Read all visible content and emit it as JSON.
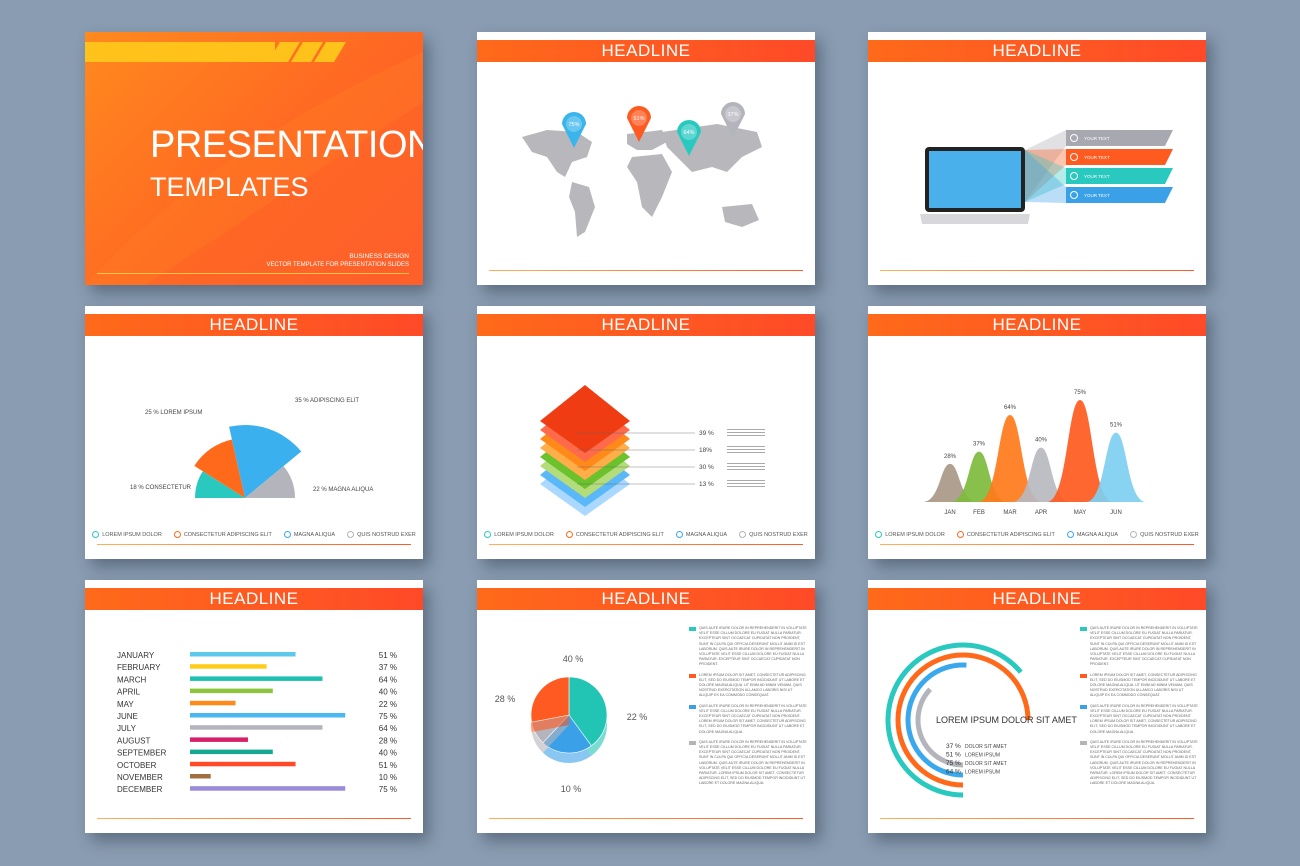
{
  "colors": {
    "background": "#8a9cb1",
    "accent": "#ff5a28",
    "yellow": "#ffc21a",
    "teal": "#2ac9c0",
    "orange": "#ff6a1a",
    "blue": "#3aa8ec",
    "gray": "#b4b4bc"
  },
  "cover": {
    "title": "PRESENTATION",
    "subtitle": "TEMPLATES",
    "tag1": "BUSINESS DESIGN",
    "tag2": "VECTOR TEMPLATE FOR PRESENTATION SLIDES"
  },
  "headline": "HEADLINE",
  "map": {
    "pins": [
      {
        "value": "75%",
        "color": "#3ab4ec"
      },
      {
        "value": "51%",
        "color": "#ff5a1f"
      },
      {
        "value": "64%",
        "color": "#2ac9c0"
      },
      {
        "value": "37%",
        "color": "#b4b4bc"
      }
    ]
  },
  "laptop": {
    "items": [
      {
        "icon": "home-icon",
        "text": "YOUR TEXT",
        "color": "#a8a8b0"
      },
      {
        "icon": "lightbulb-icon",
        "text": "YOUR TEXT",
        "color": "#ff5a1f"
      },
      {
        "icon": "globe-icon",
        "text": "YOUR TEXT",
        "color": "#2ac9c0"
      },
      {
        "icon": "gears-icon",
        "text": "YOUR TEXT",
        "color": "#3aa0e8"
      }
    ]
  },
  "legend": [
    "LOREM IPSUM DOLOR",
    "CONSECTETUR ADIPISCING ELIT",
    "MAGNA ALIQUA",
    "QUIS NOSTRUD EXER"
  ],
  "chart_data": [
    {
      "type": "pie",
      "variant": "semicircle",
      "slices": [
        {
          "value": 18,
          "label": "CONSECTETUR",
          "color": "#2ac9c0"
        },
        {
          "value": 25,
          "label": "LOREM IPSUM",
          "color": "#ff6a1a"
        },
        {
          "value": 35,
          "label": "ADIPISCING ELIT",
          "color": "#3ab0ee"
        },
        {
          "value": 22,
          "label": "MAGNA ALIQUA",
          "color": "#b4b4bc"
        }
      ]
    },
    {
      "type": "bar",
      "variant": "stacked-layers",
      "values": [
        {
          "value": 39,
          "label": "39 %"
        },
        {
          "value": 18,
          "label": "18%"
        },
        {
          "value": 30,
          "label": "30 %"
        },
        {
          "value": 13,
          "label": "13 %"
        }
      ]
    },
    {
      "type": "area",
      "variant": "peaks",
      "categories": [
        "JAN",
        "FEB",
        "MAR",
        "APR",
        "MAY",
        "JUN"
      ],
      "values": [
        28,
        37,
        64,
        40,
        75,
        51
      ],
      "colors": [
        "#a89886",
        "#7dbb3c",
        "#ff7a1a",
        "#b8b8c0",
        "#ff5a1f",
        "#7dcff0"
      ]
    },
    {
      "type": "bar",
      "orientation": "horizontal",
      "categories": [
        "JANUARY",
        "FEBRUARY",
        "MARCH",
        "APRIL",
        "MAY",
        "JUNE",
        "JULY",
        "AUGUST",
        "SEPTEMBER",
        "OCTOBER",
        "NOVEMBER",
        "DECEMBER"
      ],
      "values": [
        51,
        37,
        64,
        40,
        22,
        75,
        64,
        28,
        40,
        51,
        10,
        75
      ],
      "colors": [
        "#5bc8ee",
        "#ffcc1a",
        "#1ec0b0",
        "#8cc43c",
        "#ff8a1a",
        "#4ab8f0",
        "#b4b4bc",
        "#d8206a",
        "#16a890",
        "#ff4a2a",
        "#a07040",
        "#9a8ad8"
      ]
    },
    {
      "type": "pie",
      "variant": "3d",
      "slices": [
        {
          "value": 40,
          "label": "40 %",
          "color": "#22c4b4"
        },
        {
          "value": 22,
          "label": "22 %",
          "color": "#3aa0e8"
        },
        {
          "value": 10,
          "label": "10 %",
          "color": "#b4b4bc"
        },
        {
          "value": 28,
          "label": "28 %",
          "color": "#ff5a22"
        }
      ]
    },
    {
      "type": "pie",
      "variant": "radial-arcs",
      "title": "LOREM IPSUM DOLOR SIT AMET",
      "series": [
        {
          "value": 37,
          "label": "DOLOR SIT AMET",
          "color": "#b4b4bc"
        },
        {
          "value": 51,
          "label": "LOREM IPSUM",
          "color": "#3aa8ec"
        },
        {
          "value": 75,
          "label": "DOLOR SIT AMET",
          "color": "#ff6a1a"
        },
        {
          "value": 64,
          "label": "LOREM IPSUM",
          "color": "#2ac9c0"
        }
      ]
    }
  ],
  "paragraphs": [
    {
      "color": "#2ac9c0",
      "text": "QUIS AUTE IRURE DOLOR IN REPREHENDERIT IN VOLUPTATE VELIT ESSE CILLUM DOLORE EU FUGIAT NULLA PARIATUR. EXCEPTEUR SINT OCCAECAT CUPIDATAT NON PROIDENT, SUNT IN CULPA QUI OFFICIA DESERUNT MOLLIT ANIM ID EST LABORUM. QUIS AUTE IRURE DOLOR IN REPREHENDERIT IN VOLUPTATE VELIT ESSE CILLUM DOLORE EU FUGIAT NULLA PARIATUR. EXCEPTEUR SINT OCCAECAT CUPIDATAT NON PROIDENT."
    },
    {
      "color": "#ff5a22",
      "text": "LOREM IPSUM DOLOR SIT AMET, CONSECTETUR ADIPISCING ELIT, SED DO EIUSMOD TEMPOR INCIDIDUNT UT LABORE ET DOLORE MAGNA ALIQUA. UT ENIM AD MINIM VENIAM, QUIS NOSTRUD EXERCITATION ULLAMCO LABORIS NISI UT ALIQUIP EX EA COMMODO CONSEQUAT."
    },
    {
      "color": "#3aa0e8",
      "text": "QUIS AUTE IRURE DOLOR IN REPREHENDERIT IN VOLUPTATE VELIT ESSE CILLUM DOLORE EU FUGIAT NULLA PARIATUR. EXCEPTEUR SINT OCCAECAT CUPIDATAT NON PROIDENT. LOREM IPSUM DOLOR SIT AMET, CONSECTETUR ADIPISCING ELIT, SED DO EIUSMOD TEMPOR INCIDIDUNT UT LABORE ET DOLORE MAGNA ALIQUA."
    },
    {
      "color": "#b4b4bc",
      "text": "QUIS AUTE IRURE DOLOR IN REPREHENDERIT IN VOLUPTATE VELIT ESSE CILLUM DOLORE EU FUGIAT NULLA PARIATUR. EXCEPTEUR SINT OCCAECAT CUPIDATAT NON PROIDENT, SUNT IN CULPA QUI OFFICIA DESERUNT MOLLIT ANIM ID EST LABORUM. QUIS AUTE IRURE DOLOR IN REPREHENDERIT IN VOLUPTATE VELIT ESSE CILLUM DOLORE EU FUGIAT NULLA PARIATUR. LOREM IPSUM DOLOR SIT AMET, CONSECTETUR ADIPISCING ELIT, SED DO EIUSMOD TEMPOR INCIDIDUNT UT LABORE ET DOLORE MAGNA ALIQUA."
    }
  ]
}
